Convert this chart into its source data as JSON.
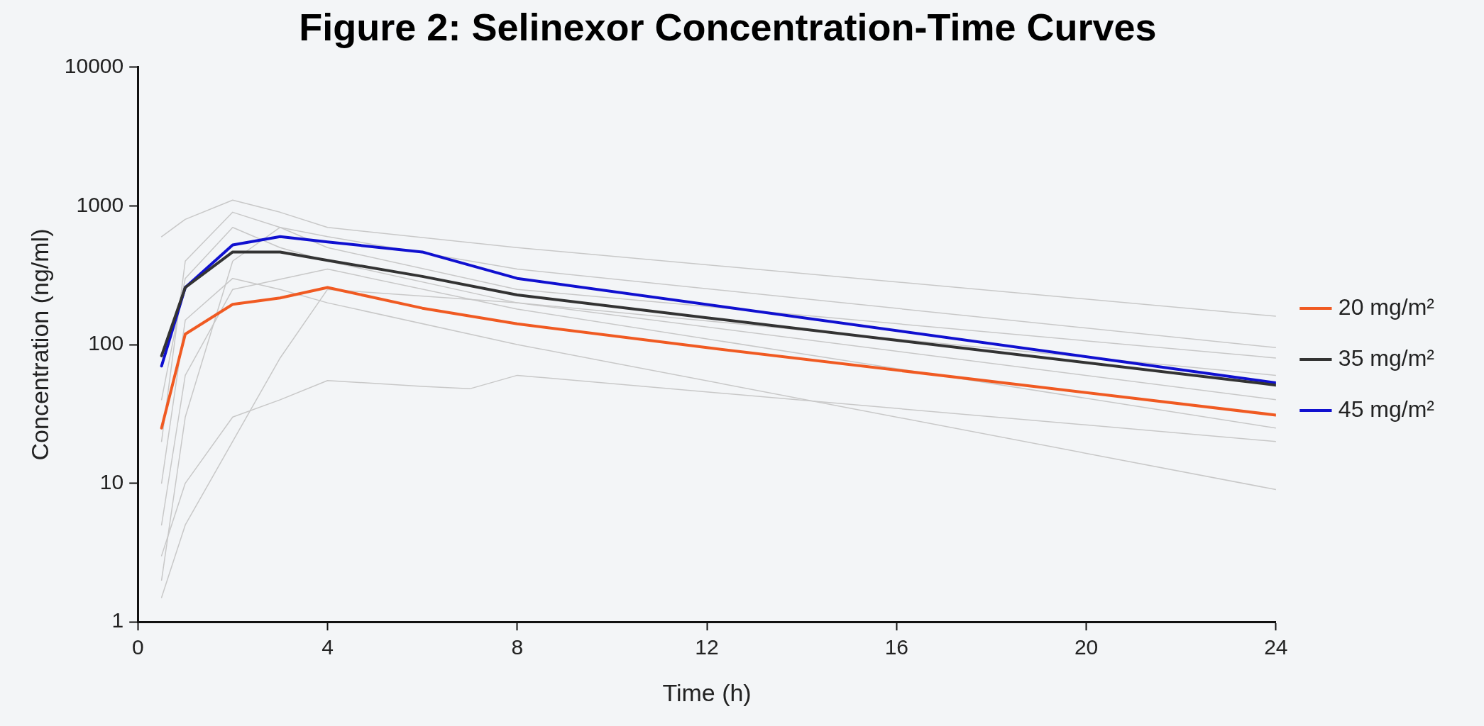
{
  "chart_data": {
    "type": "line",
    "title": "Figure 2: Selinexor Concentration-Time Curves",
    "xlabel": "Time (h)",
    "ylabel": "Concentration (ng/ml)",
    "log": "y",
    "xlim": [
      0,
      24
    ],
    "xticks": [
      0,
      4,
      8,
      12,
      16,
      20,
      24
    ],
    "ylim": [
      1,
      10000
    ],
    "yticks": [
      1,
      10,
      100,
      1000,
      10000
    ],
    "grid": false,
    "legend": "right",
    "marker": "none",
    "line_style": "solid",
    "series": [
      {
        "color": "#c8c8c8",
        "x": [
          0.5,
          1,
          2,
          3,
          4,
          8,
          24
        ],
        "values": [
          600,
          800,
          1100,
          900,
          700,
          500,
          160
        ]
      },
      {
        "color": "#c8c8c8",
        "x": [
          0.5,
          1,
          2,
          3,
          4,
          8,
          24
        ],
        "values": [
          2,
          30,
          400,
          700,
          600,
          350,
          95
        ]
      },
      {
        "color": "#c8c8c8",
        "x": [
          0.5,
          1,
          2,
          3,
          4,
          8,
          24
        ],
        "values": [
          1.5,
          5,
          20,
          80,
          250,
          200,
          60
        ]
      },
      {
        "color": "#c8c8c8",
        "x": [
          0.5,
          1,
          2,
          3,
          4,
          6,
          7,
          8,
          24
        ],
        "values": [
          3,
          10,
          30,
          40,
          55,
          50,
          48,
          60,
          20
        ]
      },
      {
        "color": "#c8c8c8",
        "x": [
          0.5,
          1,
          2,
          3,
          4,
          8,
          24
        ],
        "values": [
          40,
          300,
          700,
          500,
          400,
          200,
          40
        ]
      },
      {
        "color": "#c8c8c8",
        "x": [
          0.5,
          1,
          2,
          3,
          4,
          8,
          24
        ],
        "values": [
          10,
          150,
          300,
          250,
          200,
          100,
          9
        ]
      },
      {
        "color": "#c8c8c8",
        "x": [
          0.5,
          1,
          2,
          4,
          8,
          24
        ],
        "values": [
          5,
          60,
          250,
          350,
          180,
          25
        ]
      },
      {
        "color": "#c8c8c8",
        "x": [
          0.5,
          1,
          2,
          3,
          4,
          8,
          24
        ],
        "values": [
          20,
          400,
          900,
          700,
          500,
          250,
          80
        ]
      },
      {
        "name": "20 mg/m²",
        "color": "#f05a22",
        "x": [
          0.5,
          1,
          2,
          3,
          4,
          6,
          8,
          12,
          24
        ],
        "values": [
          25,
          119,
          195,
          217,
          258,
          183,
          141,
          95,
          31
        ]
      },
      {
        "name": "35 mg/m²",
        "color": "#333333",
        "x": [
          0.5,
          1,
          2,
          3,
          4,
          6,
          8,
          12,
          24
        ],
        "values": [
          83,
          258,
          465,
          465,
          405,
          310,
          228,
          156,
          51
        ]
      },
      {
        "name": "45 mg/m²",
        "color": "#1010d0",
        "x": [
          0.5,
          1,
          2,
          3,
          4,
          6,
          8,
          24
        ],
        "values": [
          70,
          258,
          523,
          600,
          550,
          465,
          300,
          53
        ]
      }
    ]
  }
}
